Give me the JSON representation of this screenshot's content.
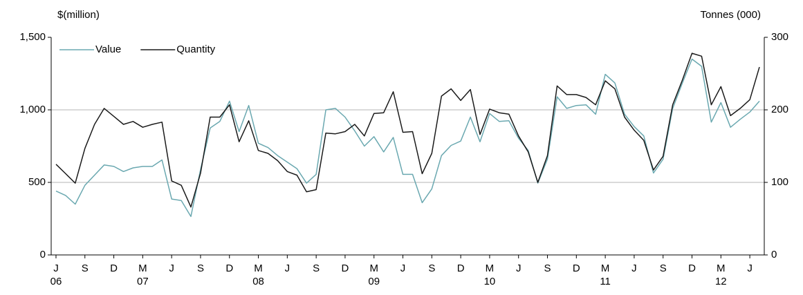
{
  "chart_data": {
    "type": "line",
    "y_label": "$(million)",
    "y2_label": "Tonnes (000)",
    "categories": [
      "J",
      null,
      null,
      "S",
      null,
      null,
      "D",
      null,
      null,
      "M",
      null,
      null,
      "J",
      null,
      null,
      "S",
      null,
      null,
      "D",
      null,
      null,
      "M",
      null,
      null,
      "J",
      null,
      null,
      "S",
      null,
      null,
      "D",
      null,
      null,
      "M",
      null,
      null,
      "J",
      null,
      null,
      "S",
      null,
      null,
      "D",
      null,
      null,
      "M",
      null,
      null,
      "J",
      null,
      null,
      "S",
      null,
      null,
      "D",
      null,
      null,
      "M",
      null,
      null,
      "J",
      null,
      null,
      "S",
      null,
      null,
      "D",
      null,
      null,
      "M",
      null,
      null,
      "J",
      null
    ],
    "year_labels": [
      "06",
      null,
      null,
      null,
      null,
      null,
      null,
      null,
      null,
      "07",
      null,
      null,
      null,
      null,
      null,
      null,
      null,
      null,
      null,
      null,
      null,
      "08",
      null,
      null,
      null,
      null,
      null,
      null,
      null,
      null,
      null,
      null,
      null,
      "09",
      null,
      null,
      null,
      null,
      null,
      null,
      null,
      null,
      null,
      null,
      null,
      "10",
      null,
      null,
      null,
      null,
      null,
      null,
      null,
      null,
      null,
      null,
      null,
      "11",
      null,
      null,
      null,
      null,
      null,
      null,
      null,
      null,
      null,
      null,
      null,
      "12",
      null,
      null,
      null,
      null
    ],
    "series": [
      {
        "name": "Value",
        "color": "#6aa8b0",
        "axis": "y",
        "values": [
          440,
          410,
          350,
          480,
          550,
          620,
          610,
          575,
          600,
          610,
          610,
          655,
          385,
          375,
          265,
          590,
          875,
          920,
          1060,
          850,
          1030,
          770,
          740,
          685,
          640,
          595,
          495,
          555,
          1000,
          1010,
          950,
          855,
          750,
          815,
          710,
          810,
          555,
          555,
          360,
          455,
          685,
          755,
          785,
          950,
          780,
          975,
          920,
          925,
          805,
          720,
          495,
          660,
          1090,
          1010,
          1030,
          1035,
          970,
          1245,
          1185,
          970,
          885,
          820,
          565,
          660,
          1010,
          1185,
          1350,
          1300,
          915,
          1050,
          880,
          935,
          985,
          1060
        ]
      },
      {
        "name": "Quantity",
        "color": "#1a1a1a",
        "axis": "y2",
        "values": [
          125,
          112,
          99,
          147,
          180,
          202,
          191,
          180,
          184,
          176,
          180,
          183,
          102,
          96,
          66,
          113,
          190,
          190,
          207,
          156,
          185,
          144,
          140,
          130,
          115,
          110,
          87,
          90,
          168,
          167,
          170,
          180,
          164,
          195,
          196,
          225,
          169,
          170,
          112,
          140,
          219,
          229,
          213,
          228,
          166,
          201,
          196,
          194,
          164,
          142,
          100,
          137,
          233,
          221,
          221,
          217,
          207,
          240,
          229,
          190,
          172,
          158,
          117,
          136,
          207,
          241,
          278,
          274,
          207,
          232,
          192,
          202,
          214,
          259
        ]
      }
    ],
    "ylim": [
      0,
      1500
    ],
    "yticks": [
      0,
      500,
      {
        "value": 1000,
        "label": "1,000"
      },
      {
        "value": 1500,
        "label": "1,500"
      }
    ],
    "y2lim": [
      0,
      300
    ],
    "y2ticks": [
      0,
      100,
      200,
      300
    ],
    "grid": true,
    "legend": "upper left"
  }
}
